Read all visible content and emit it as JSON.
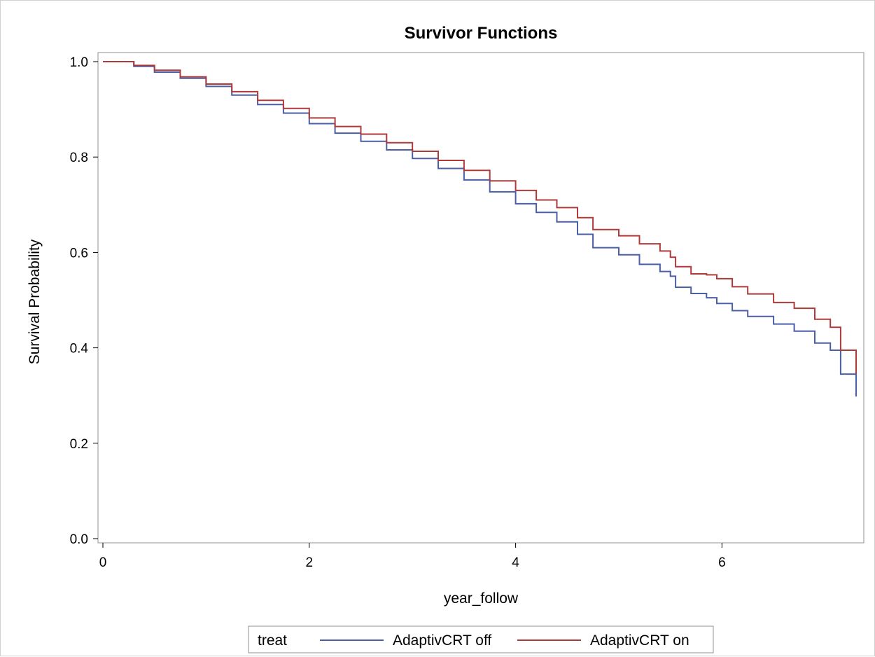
{
  "chart_data": {
    "type": "line",
    "title": "Survivor Functions",
    "xlabel": "year_follow",
    "ylabel": "Survival Probability",
    "xlim": [
      0,
      7.3
    ],
    "ylim": [
      0,
      1.0
    ],
    "xticks": [
      "0",
      "2",
      "4",
      "6"
    ],
    "yticks": [
      "0.0",
      "0.2",
      "0.4",
      "0.6",
      "0.8",
      "1.0"
    ],
    "grid": false,
    "step": true,
    "legend": {
      "title": "treat",
      "position": "bottom-center"
    },
    "series": [
      {
        "name": "AdaptivCRT off",
        "color": "#4a5fa5",
        "points": [
          [
            0,
            1.0
          ],
          [
            0.22,
            1.0
          ],
          [
            0.3,
            0.99
          ],
          [
            0.5,
            0.978
          ],
          [
            0.75,
            0.965
          ],
          [
            1.0,
            0.948
          ],
          [
            1.25,
            0.93
          ],
          [
            1.5,
            0.91
          ],
          [
            1.75,
            0.892
          ],
          [
            2.0,
            0.87
          ],
          [
            2.25,
            0.85
          ],
          [
            2.5,
            0.833
          ],
          [
            2.75,
            0.815
          ],
          [
            3.0,
            0.797
          ],
          [
            3.25,
            0.776
          ],
          [
            3.5,
            0.752
          ],
          [
            3.75,
            0.727
          ],
          [
            4.0,
            0.702
          ],
          [
            4.2,
            0.684
          ],
          [
            4.4,
            0.664
          ],
          [
            4.6,
            0.638
          ],
          [
            4.75,
            0.61
          ],
          [
            5.0,
            0.595
          ],
          [
            5.2,
            0.575
          ],
          [
            5.4,
            0.56
          ],
          [
            5.5,
            0.55
          ],
          [
            5.55,
            0.527
          ],
          [
            5.7,
            0.514
          ],
          [
            5.85,
            0.505
          ],
          [
            5.95,
            0.493
          ],
          [
            6.1,
            0.478
          ],
          [
            6.25,
            0.466
          ],
          [
            6.5,
            0.45
          ],
          [
            6.7,
            0.435
          ],
          [
            6.9,
            0.41
          ],
          [
            7.05,
            0.395
          ],
          [
            7.1,
            0.395
          ],
          [
            7.15,
            0.345
          ],
          [
            7.3,
            0.345
          ],
          [
            7.3,
            0.298
          ]
        ]
      },
      {
        "name": "AdaptivCRT on",
        "color": "#b03a3a",
        "points": [
          [
            0,
            1.0
          ],
          [
            0.22,
            1.0
          ],
          [
            0.3,
            0.992
          ],
          [
            0.5,
            0.982
          ],
          [
            0.75,
            0.968
          ],
          [
            1.0,
            0.953
          ],
          [
            1.25,
            0.937
          ],
          [
            1.5,
            0.919
          ],
          [
            1.75,
            0.902
          ],
          [
            2.0,
            0.882
          ],
          [
            2.25,
            0.864
          ],
          [
            2.5,
            0.848
          ],
          [
            2.75,
            0.83
          ],
          [
            3.0,
            0.812
          ],
          [
            3.25,
            0.793
          ],
          [
            3.5,
            0.772
          ],
          [
            3.75,
            0.75
          ],
          [
            4.0,
            0.73
          ],
          [
            4.2,
            0.71
          ],
          [
            4.4,
            0.694
          ],
          [
            4.6,
            0.673
          ],
          [
            4.75,
            0.648
          ],
          [
            5.0,
            0.635
          ],
          [
            5.2,
            0.618
          ],
          [
            5.4,
            0.603
          ],
          [
            5.5,
            0.59
          ],
          [
            5.55,
            0.57
          ],
          [
            5.7,
            0.555
          ],
          [
            5.85,
            0.553
          ],
          [
            5.95,
            0.545
          ],
          [
            6.1,
            0.528
          ],
          [
            6.25,
            0.513
          ],
          [
            6.5,
            0.495
          ],
          [
            6.7,
            0.483
          ],
          [
            6.9,
            0.46
          ],
          [
            7.05,
            0.443
          ],
          [
            7.1,
            0.443
          ],
          [
            7.15,
            0.395
          ],
          [
            7.3,
            0.395
          ],
          [
            7.3,
            0.346
          ]
        ]
      }
    ]
  }
}
